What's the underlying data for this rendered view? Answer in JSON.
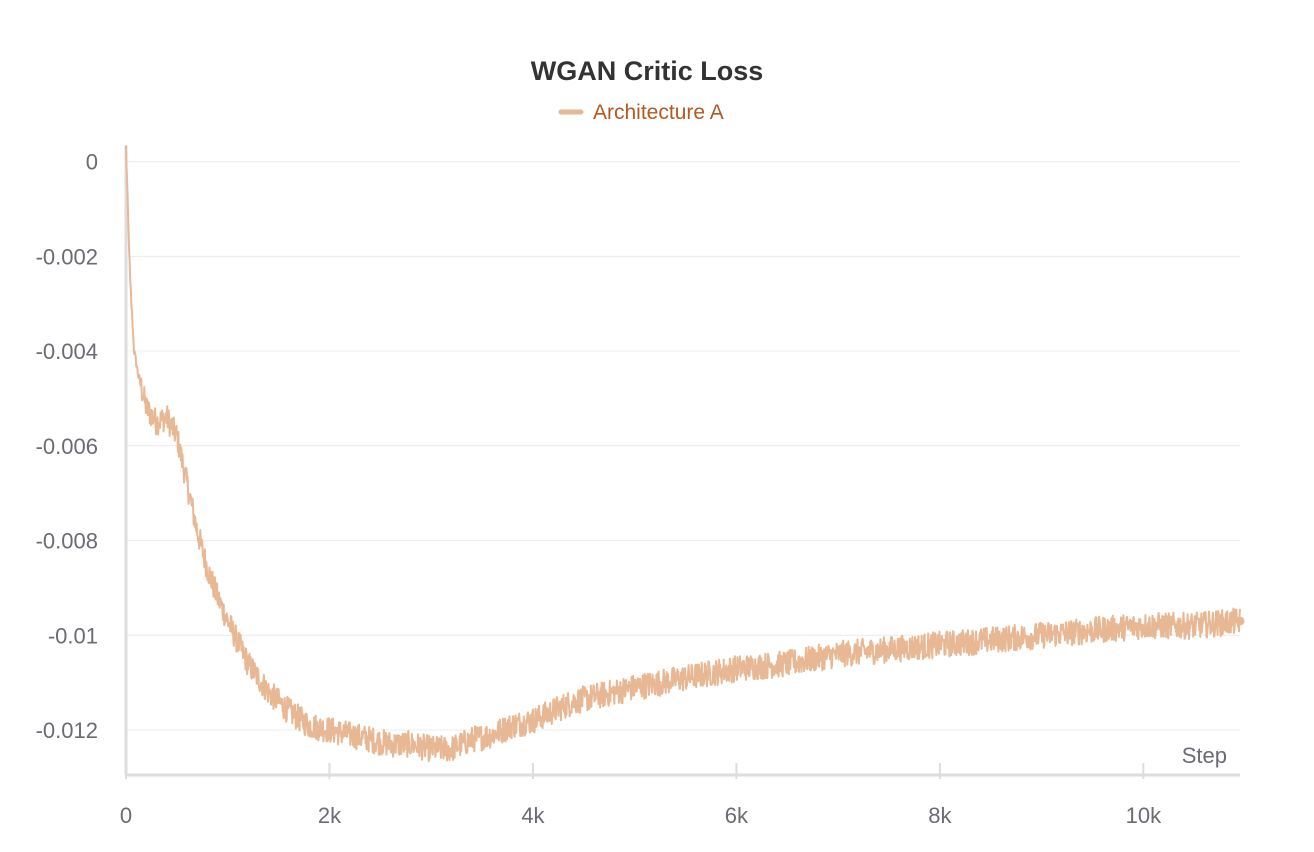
{
  "chart_data": {
    "type": "line",
    "title": "WGAN Critic Loss",
    "xlabel": "Step",
    "ylabel": "",
    "xlim": [
      0,
      10950
    ],
    "ylim": [
      -0.01295,
      0.00035
    ],
    "x_ticks": [
      0,
      2000,
      4000,
      6000,
      8000,
      10000
    ],
    "x_tick_labels": [
      "0",
      "2k",
      "4k",
      "6k",
      "8k",
      "10k"
    ],
    "y_ticks": [
      0,
      -0.002,
      -0.004,
      -0.006,
      -0.008,
      -0.01,
      -0.012
    ],
    "y_tick_labels": [
      "0",
      "-0.002",
      "-0.004",
      "-0.006",
      "-0.008",
      "-0.01",
      "-0.012"
    ],
    "grid": true,
    "legend_position": "top-center",
    "series": [
      {
        "name": "Architecture A",
        "color": "#e8b894",
        "x": [
          0,
          40,
          80,
          120,
          200,
          300,
          400,
          500,
          600,
          700,
          800,
          900,
          1000,
          1200,
          1400,
          1600,
          1800,
          2000,
          2200,
          2400,
          2600,
          2800,
          3000,
          3200,
          3400,
          3600,
          3800,
          4000,
          4200,
          4400,
          4600,
          4800,
          5000,
          5500,
          6000,
          6500,
          7000,
          7500,
          8000,
          8500,
          9000,
          9500,
          10000,
          10500,
          10950
        ],
        "y": [
          0.0003,
          -0.0025,
          -0.004,
          -0.0045,
          -0.0052,
          -0.0055,
          -0.0054,
          -0.0058,
          -0.0068,
          -0.0078,
          -0.0086,
          -0.0092,
          -0.0097,
          -0.0106,
          -0.0112,
          -0.0116,
          -0.0119,
          -0.012,
          -0.0121,
          -0.0122,
          -0.0123,
          -0.0123,
          -0.0124,
          -0.0124,
          -0.0122,
          -0.0121,
          -0.0119,
          -0.0118,
          -0.0116,
          -0.0114,
          -0.0113,
          -0.0112,
          -0.0111,
          -0.0109,
          -0.0107,
          -0.0106,
          -0.0104,
          -0.0103,
          -0.0102,
          -0.0101,
          -0.01,
          -0.0099,
          -0.0098,
          -0.0098,
          -0.0097
        ]
      }
    ]
  }
}
